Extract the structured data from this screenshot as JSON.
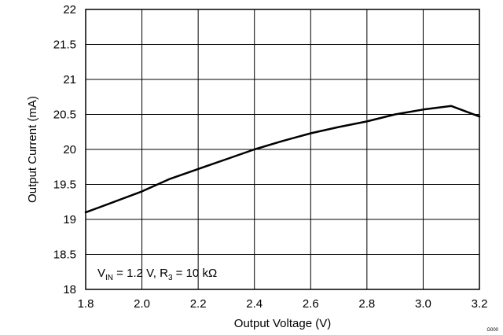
{
  "chart_data": {
    "type": "line",
    "xlabel": "Output Voltage (V)",
    "ylabel": "Output Current (mA)",
    "xlim": [
      1.8,
      3.2
    ],
    "ylim": [
      18,
      22
    ],
    "xticks": [
      "1.8",
      "2.0",
      "2.2",
      "2.4",
      "2.6",
      "2.8",
      "3.0",
      "3.2"
    ],
    "yticks": [
      "18",
      "18.5",
      "19",
      "19.5",
      "20",
      "20.5",
      "21",
      "21.5",
      "22"
    ],
    "grid": true,
    "annotation": {
      "v": "V",
      "v_sub": "IN",
      "mid": " = 1.2 V, R",
      "r_sub": "3",
      "tail": " = 10 kΩ"
    },
    "corner_code": "G000",
    "line_color": "#000000",
    "series": [
      {
        "x": [
          1.8,
          1.9,
          2.0,
          2.1,
          2.2,
          2.3,
          2.4,
          2.5,
          2.6,
          2.7,
          2.8,
          2.9,
          3.0,
          3.1,
          3.2
        ],
        "y": [
          19.1,
          19.25,
          19.4,
          19.58,
          19.72,
          19.86,
          20.0,
          20.12,
          20.23,
          20.32,
          20.4,
          20.5,
          20.57,
          20.62,
          20.47
        ]
      }
    ]
  }
}
